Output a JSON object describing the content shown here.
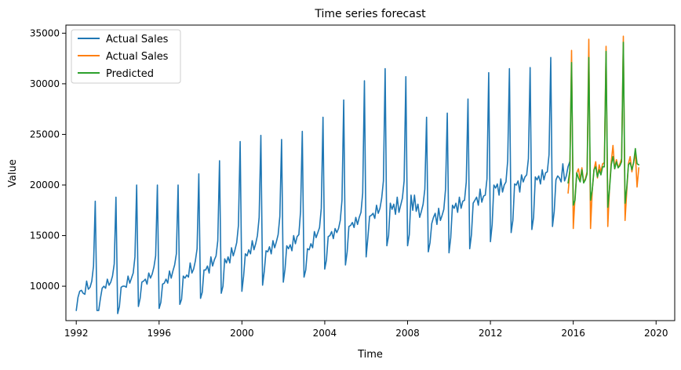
{
  "chart_data": {
    "type": "line",
    "title": "Time series forecast",
    "xlabel": "Time",
    "ylabel": "Value",
    "xlim": [
      1991.5,
      2020.9
    ],
    "ylim": [
      6600,
      35800
    ],
    "x_ticks": [
      1992,
      1996,
      2000,
      2004,
      2008,
      2012,
      2016,
      2020
    ],
    "y_ticks": [
      10000,
      15000,
      20000,
      25000,
      30000,
      35000
    ],
    "x_tick_labels": [
      "1992",
      "1996",
      "2000",
      "2004",
      "2008",
      "2012",
      "2016",
      "2020"
    ],
    "y_tick_labels": [
      "10000",
      "15000",
      "20000",
      "25000",
      "30000",
      "35000"
    ],
    "grid": false,
    "legend_position": "top-left",
    "colors": [
      "#1f77b4",
      "#ff7f0e",
      "#2ca02c"
    ],
    "series": [
      {
        "name": "Actual Sales",
        "color": "#1f77b4",
        "start": 1992.0,
        "step": 0.08333,
        "values": [
          7600,
          8900,
          9500,
          9600,
          9300,
          9200,
          10500,
          9700,
          9900,
          10500,
          12000,
          18400,
          7600,
          7600,
          8800,
          9800,
          10000,
          9800,
          10700,
          10100,
          10400,
          11000,
          12200,
          18800,
          7300,
          8000,
          9900,
          10000,
          10000,
          9900,
          11000,
          10300,
          10800,
          11300,
          12900,
          20000,
          8000,
          8800,
          10400,
          10500,
          10700,
          10200,
          11300,
          10800,
          11200,
          11900,
          13000,
          20000,
          7800,
          8400,
          10200,
          10300,
          10700,
          10300,
          11500,
          10800,
          11500,
          12100,
          13200,
          20000,
          8200,
          8700,
          11000,
          10800,
          11100,
          10900,
          12300,
          11300,
          11700,
          12500,
          13700,
          21100,
          8800,
          9400,
          11600,
          11600,
          12000,
          11300,
          12900,
          12000,
          12600,
          13000,
          14500,
          22400,
          9300,
          10000,
          12700,
          12300,
          12900,
          12300,
          13800,
          13000,
          13600,
          14300,
          16000,
          24300,
          9500,
          11000,
          13200,
          13000,
          13600,
          13200,
          14500,
          13600,
          14200,
          15000,
          16800,
          24900,
          10100,
          11500,
          13500,
          13400,
          13900,
          13200,
          14500,
          13800,
          14400,
          15100,
          16900,
          24500,
          10400,
          11700,
          14000,
          13700,
          14100,
          13500,
          15000,
          14200,
          14900,
          15100,
          17400,
          25300,
          10900,
          11600,
          13700,
          13600,
          14200,
          13800,
          15400,
          14800,
          15300,
          15800,
          17700,
          26700,
          11700,
          12600,
          14900,
          15000,
          15400,
          14700,
          15700,
          15300,
          15700,
          16500,
          18500,
          28400,
          12100,
          13400,
          15900,
          16000,
          16300,
          15800,
          16800,
          16100,
          16800,
          17300,
          19200,
          30300,
          12900,
          14800,
          16900,
          17000,
          17200,
          16700,
          18000,
          17200,
          17700,
          18700,
          20400,
          31500,
          14000,
          15000,
          18200,
          17600,
          18100,
          17100,
          18800,
          17300,
          18000,
          18700,
          20400,
          30700,
          14000,
          15100,
          19000,
          17500,
          19000,
          17400,
          18100,
          16800,
          17400,
          18100,
          19600,
          26700,
          13400,
          14300,
          16200,
          16800,
          17200,
          16100,
          17700,
          16500,
          17000,
          17600,
          19600,
          27100,
          13300,
          14800,
          18000,
          17700,
          18200,
          17300,
          18800,
          17700,
          18400,
          18500,
          20300,
          28500,
          13700,
          15100,
          18200,
          18500,
          18800,
          18000,
          19600,
          18300,
          18900,
          19000,
          20600,
          31100,
          14400,
          16100,
          20000,
          19700,
          20100,
          19000,
          20600,
          19300,
          20000,
          20300,
          22400,
          31500,
          15300,
          16500,
          20100,
          20000,
          20400,
          19300,
          21000,
          20300,
          20800,
          21000,
          22600,
          31600,
          15600,
          16800,
          20800,
          20500,
          20900,
          20100,
          21500,
          20500,
          21200,
          21300,
          23000,
          32600,
          15900,
          17400,
          20500,
          20900,
          20700,
          20300,
          22100,
          20400,
          20900,
          21800,
          22300
        ]
      },
      {
        "name": "Actual Sales",
        "color": "#ff7f0e",
        "start": 2015.75,
        "step": 0.08333,
        "values": [
          19200,
          21300,
          33300,
          15700,
          18800,
          21200,
          21600,
          20500,
          21700,
          20300,
          20600,
          21300,
          34400,
          15700,
          19500,
          21500,
          22300,
          20700,
          22000,
          21300,
          22100,
          22200,
          33700,
          15900,
          19800,
          22300,
          23900,
          21600,
          22500,
          21700,
          22100,
          22600,
          34700,
          16500,
          19300,
          22100,
          22800,
          21300,
          22300,
          23100,
          19800,
          21700
        ]
      },
      {
        "name": "Predicted",
        "color": "#2ca02c",
        "start": 2015.75,
        "step": 0.08333,
        "values": [
          20200,
          21400,
          32100,
          18000,
          18500,
          21200,
          20700,
          20300,
          21500,
          20200,
          20500,
          21100,
          32600,
          18500,
          19500,
          21500,
          21800,
          20800,
          21500,
          21000,
          21800,
          21800,
          33200,
          17800,
          19600,
          22000,
          22800,
          21600,
          22300,
          21700,
          21900,
          22300,
          34100,
          18200,
          19700,
          22000,
          22200,
          21500,
          22200,
          23600,
          22100,
          22000
        ]
      }
    ]
  }
}
